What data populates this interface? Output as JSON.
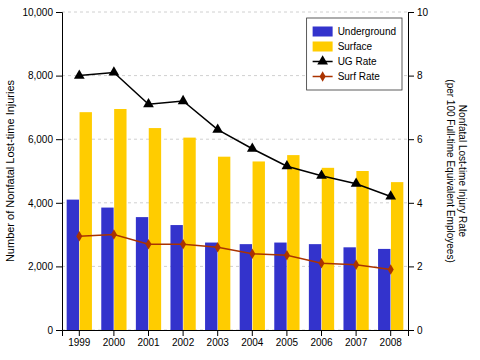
{
  "chart_data": {
    "type": "bar",
    "categories": [
      "1999",
      "2000",
      "2001",
      "2002",
      "2003",
      "2004",
      "2005",
      "2006",
      "2007",
      "2008"
    ],
    "series": [
      {
        "name": "Underground",
        "type": "bar",
        "color": "#3333cc",
        "values": [
          4100,
          3850,
          3550,
          3300,
          2750,
          2700,
          2750,
          2700,
          2600,
          2550
        ]
      },
      {
        "name": "Surface",
        "type": "bar",
        "color": "#ffcc00",
        "values": [
          6850,
          6950,
          6350,
          6050,
          5450,
          5300,
          5500,
          5100,
          5000,
          4650
        ]
      },
      {
        "name": "UG Rate",
        "type": "line",
        "axis": "y2",
        "color": "#000000",
        "marker": "triangle",
        "values": [
          8.0,
          8.1,
          7.1,
          7.2,
          6.3,
          5.7,
          5.15,
          4.85,
          4.6,
          4.2
        ]
      },
      {
        "name": "Surf Rate",
        "type": "line",
        "axis": "y2",
        "color": "#aa3300",
        "marker": "diamond",
        "values": [
          2.95,
          3.0,
          2.7,
          2.7,
          2.6,
          2.4,
          2.35,
          2.1,
          2.05,
          1.9
        ]
      }
    ],
    "ylabel": "Number of Nonfatal Lost-time Injuries",
    "y2label": "Nonfatal Lost-time Injury Rate\n(per 100 Full-time Equivalent Employees)",
    "ylim": [
      0,
      10000
    ],
    "yticks": [
      0,
      {
        "value": 2000,
        "label": "2,000"
      },
      {
        "value": 4000,
        "label": "4,000"
      },
      {
        "value": 6000,
        "label": "6,000"
      },
      {
        "value": 8000,
        "label": "8,000"
      },
      {
        "value": 10000,
        "label": "10,000"
      }
    ],
    "y2lim": [
      0,
      10
    ],
    "y2ticks": [
      0,
      2,
      4,
      6,
      8,
      10
    ],
    "grid": true,
    "legend": "upper right"
  }
}
